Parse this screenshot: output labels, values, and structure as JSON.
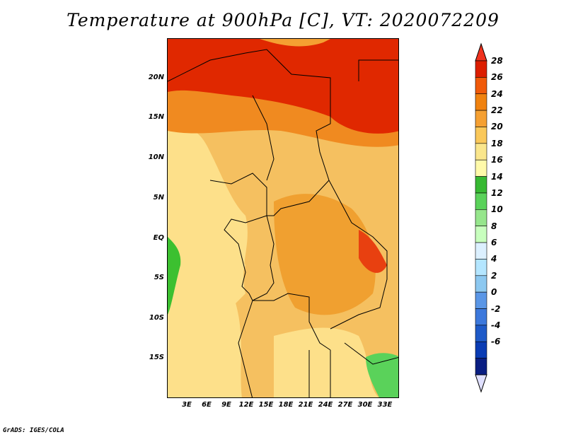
{
  "title": "Temperature at 900hPa [C], VT: 2020072209",
  "credit": "GrADS: IGES/COLA",
  "lat_labels": [
    "20N",
    "15N",
    "10N",
    "5N",
    "EQ",
    "5S",
    "10S",
    "15S"
  ],
  "lon_labels": [
    "3E",
    "6E",
    "9E",
    "12E",
    "15E",
    "18E",
    "21E",
    "24E",
    "27E",
    "30E",
    "33E"
  ],
  "colorbar": {
    "labels": [
      "28",
      "26",
      "24",
      "22",
      "20",
      "18",
      "16",
      "14",
      "12",
      "10",
      "8",
      "6",
      "4",
      "2",
      "0",
      "-2",
      "-4",
      "-6"
    ],
    "colors_top_to_bottom": [
      "#f0321e",
      "#dc1e00",
      "#f05a0a",
      "#f0820f",
      "#f5a032",
      "#fac85a",
      "#fae68c",
      "#fffaaa",
      "#37b932",
      "#5ad25a",
      "#96e68c",
      "#c8ffbe",
      "#dcf0ff",
      "#b4e6ff",
      "#8cc8f0",
      "#5a96e6",
      "#3c78dc",
      "#1e5ac8",
      "#0a3cb4",
      "#0a1e82",
      "#e0e0ff"
    ]
  },
  "map": {
    "variable": "Temperature at 900hPa",
    "units": "C",
    "valid_time": "2020072209"
  }
}
